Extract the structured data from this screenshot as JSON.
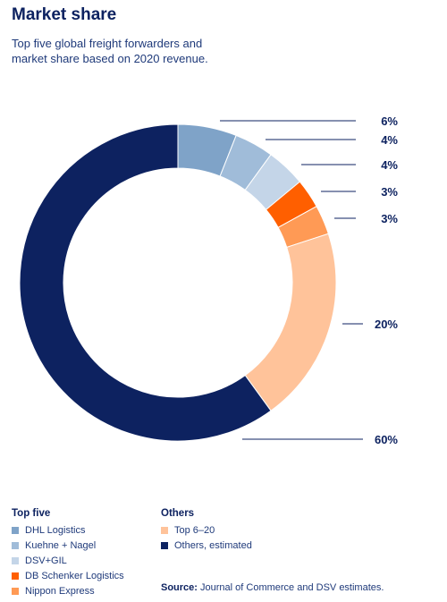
{
  "header": {
    "title": "Market share",
    "subtitle": "Top five global freight forwarders and market share based on 2020 revenue."
  },
  "chart_data": {
    "type": "pie",
    "title": "Market share",
    "labels": [
      "DHL Logistics",
      "Kuehne + Nagel",
      "DSV+GIL",
      "DB Schenker Logistics",
      "Nippon Express",
      "Top 6-20",
      "Others, estimated"
    ],
    "values": [
      6,
      4,
      4,
      3,
      3,
      20,
      60
    ],
    "value_labels": [
      "6%",
      "4%",
      "4%",
      "3%",
      "3%",
      "20%",
      "60%"
    ],
    "colors": [
      "#7fa3c8",
      "#a0bcd9",
      "#c4d5e8",
      "#ff5f00",
      "#ff9a55",
      "#ffc39a",
      "#0d2260"
    ],
    "legend_placement": "bottom"
  },
  "legend": {
    "top_five_heading": "Top five",
    "others_heading": "Others",
    "top_five": [
      {
        "label": "DHL Logistics",
        "color": "#7fa3c8"
      },
      {
        "label": "Kuehne + Nagel",
        "color": "#a0bcd9"
      },
      {
        "label": "DSV+GIL",
        "color": "#c4d5e8"
      },
      {
        "label": "DB Schenker Logistics",
        "color": "#ff5f00"
      },
      {
        "label": "Nippon Express",
        "color": "#ff9a55"
      }
    ],
    "others": [
      {
        "label": "Top 6–20",
        "color": "#ffc39a"
      },
      {
        "label": "Others, estimated",
        "color": "#0d2260"
      }
    ]
  },
  "footer": {
    "source_label": "Source:",
    "source_text": " Journal of Commerce and DSV estimates."
  }
}
